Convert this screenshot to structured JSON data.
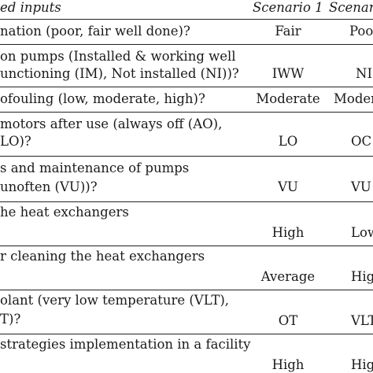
{
  "header": {
    "inputs": "ed inputs",
    "scenario1": "Scenario 1",
    "scenario2": "Scenar"
  },
  "rows": [
    {
      "lines": [
        "nation (poor, fair well done)?"
      ],
      "s1": "Fair",
      "s2": "Poo"
    },
    {
      "lines": [
        "on pumps (Installed & working well",
        "unctioning (IM), Not installed (NI))?"
      ],
      "s1": "IWW",
      "s2": "NI"
    },
    {
      "lines": [
        "ofouling (low, moderate, high)?"
      ],
      "s1": "Moderate",
      "s2": "Moder"
    },
    {
      "lines": [
        "motors after use (always off (AO),",
        "LO)?"
      ],
      "s1": "LO",
      "s2": "OC"
    },
    {
      "lines": [
        "s and maintenance of pumps",
        "unoften (VU))?"
      ],
      "s1": "VU",
      "s2": "VU"
    },
    {
      "lines": [
        "he heat exchangers",
        ""
      ],
      "s1": "High",
      "s2": "Low"
    },
    {
      "lines": [
        "r cleaning the heat exchangers",
        ""
      ],
      "s1": "Average",
      "s2": "Hig"
    },
    {
      "lines": [
        "olant (very low temperature (VLT),",
        "T)?"
      ],
      "s1": "OT",
      "s2": "VLT"
    },
    {
      "lines": [
        "strategies implementation in a facility",
        ""
      ],
      "s1": "High",
      "s2": "High"
    }
  ]
}
